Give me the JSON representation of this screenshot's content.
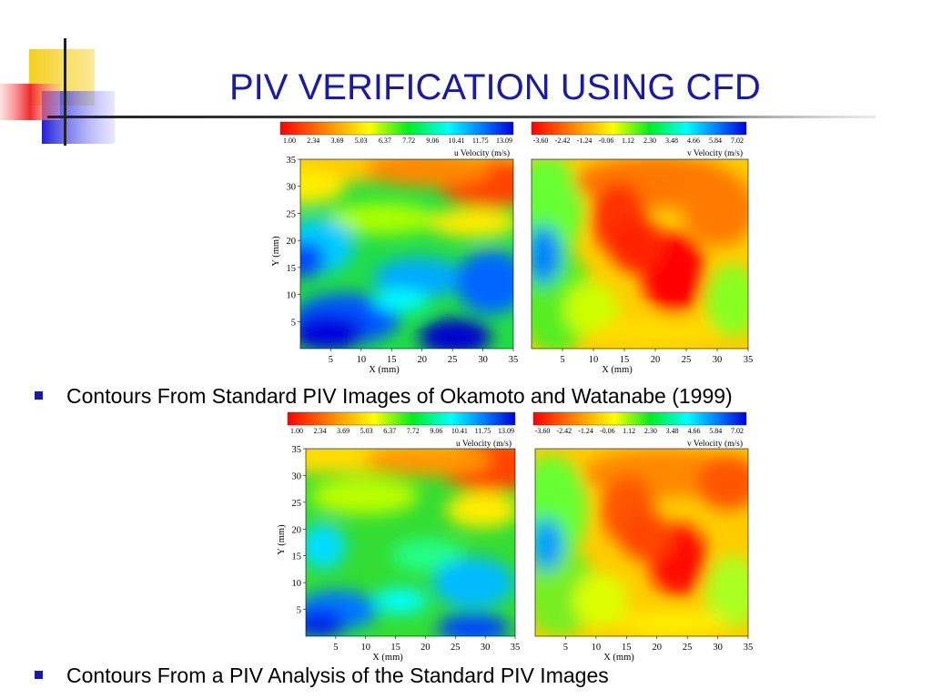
{
  "slide": {
    "title": "PIV VERIFICATION USING CFD",
    "bullets": [
      "Contours From Standard PIV Images of Okamoto and Watanabe (1999)",
      "Contours From a PIV Analysis of the Standard PIV Images"
    ]
  },
  "colorbars": {
    "u": {
      "ticks": [
        "1.00",
        "2.34",
        "3.69",
        "5.03",
        "6.37",
        "7.72",
        "9.06",
        "10.41",
        "11.75",
        "13.09"
      ],
      "label": "u Velocity    (m/s)"
    },
    "v": {
      "ticks": [
        "-3.60",
        "-2.42",
        "-1.24",
        "-0.06",
        "1.12",
        "2.30",
        "3.48",
        "4.66",
        "5.84",
        "7.02"
      ],
      "label": "v Velocity    (m/s)"
    }
  },
  "axes": {
    "xlabel": "X (mm)",
    "ylabel": "Y (mm)",
    "xticks": [
      "5",
      "10",
      "15",
      "20",
      "25",
      "30",
      "35"
    ],
    "yticks": [
      "5",
      "10",
      "15",
      "20",
      "25",
      "30",
      "35"
    ]
  },
  "colors": {
    "title": "#1a1aa8",
    "bullet": "#1a1aa8",
    "deco_yellow": "#f5d224",
    "deco_red": "#ef3b3b",
    "deco_blue": "#2b2be0"
  }
}
